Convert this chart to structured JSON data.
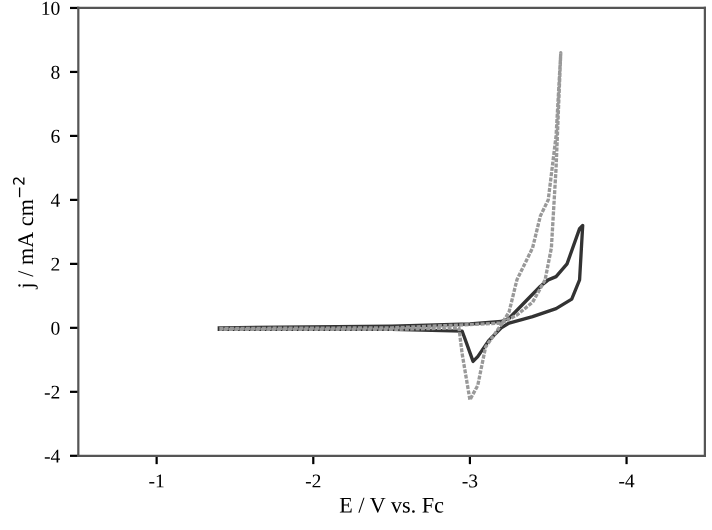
{
  "chart_data": {
    "type": "line",
    "xlabel": "E / V vs. Fc",
    "ylabel": "j / mA cm$^{−2}$",
    "xlim": [
      -0.5,
      -4.5
    ],
    "xticks": [
      -1,
      -2,
      -3,
      -4
    ],
    "ylim": [
      -4,
      10
    ],
    "yticks": [
      -4,
      -2,
      0,
      2,
      4,
      6,
      8,
      10
    ],
    "grid": false,
    "legend": false,
    "series": [
      {
        "color": "#333333",
        "line_style": "solid",
        "x": [
          -1.4,
          -2.5,
          -3.0,
          -3.2,
          -3.25,
          -3.35,
          -3.45,
          -3.5,
          -3.55,
          -3.62,
          -3.7,
          -3.72,
          -3.7,
          -3.65,
          -3.55,
          -3.4,
          -3.25,
          -3.2,
          -3.12,
          -3.05,
          -3.02,
          -2.98,
          -2.95,
          -2.5,
          -1.4
        ],
        "values": [
          0.0,
          0.05,
          0.12,
          0.2,
          0.3,
          0.8,
          1.3,
          1.5,
          1.6,
          2.0,
          3.1,
          3.2,
          1.5,
          0.9,
          0.6,
          0.35,
          0.15,
          0.0,
          -0.4,
          -0.9,
          -1.05,
          -0.5,
          -0.1,
          -0.05,
          -0.05
        ]
      },
      {
        "color": "#999999",
        "line_style": "dotted",
        "x": [
          -1.4,
          -2.5,
          -3.0,
          -3.2,
          -3.3,
          -3.4,
          -3.48,
          -3.52,
          -3.55,
          -3.58,
          -3.55,
          -3.5,
          -3.45,
          -3.4,
          -3.3,
          -3.25,
          -3.2,
          -3.1,
          -3.05,
          -3.0,
          -2.95,
          -2.93,
          -2.5,
          -1.4
        ],
        "values": [
          -0.02,
          0.0,
          0.1,
          0.15,
          0.4,
          0.8,
          1.5,
          2.5,
          5.0,
          8.6,
          6.0,
          4.0,
          3.5,
          2.5,
          1.5,
          0.5,
          0.1,
          -0.6,
          -1.8,
          -2.25,
          -0.8,
          0.0,
          -0.05,
          -0.05
        ]
      }
    ]
  }
}
